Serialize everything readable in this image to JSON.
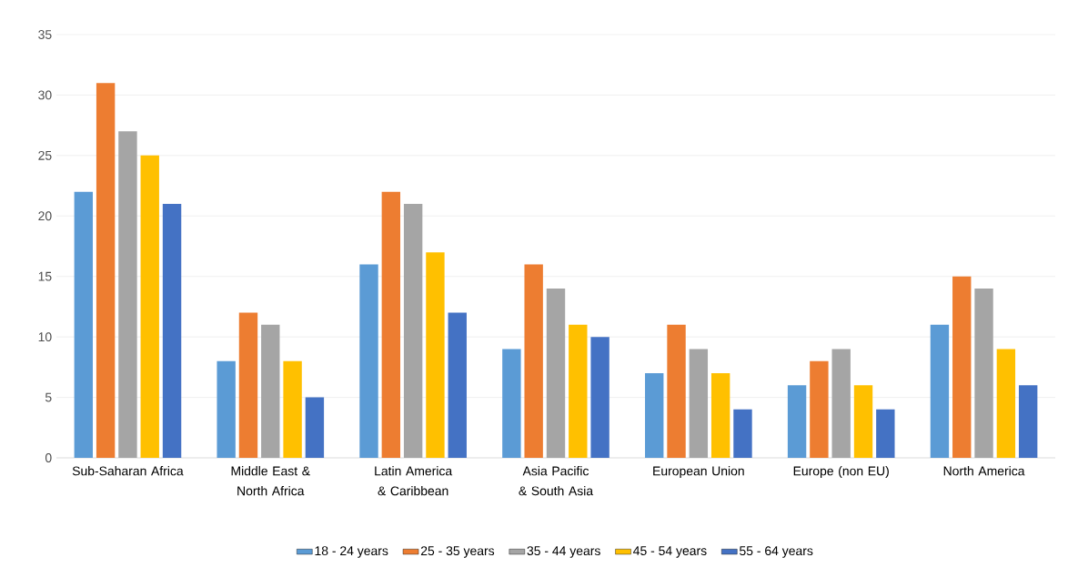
{
  "chart_data": {
    "type": "bar",
    "categories": [
      "Sub-Saharan Africa",
      "Middle East & North Africa",
      "Latin America & Caribbean",
      "Asia Pacific & South Asia",
      "European Union",
      "Europe (non EU)",
      "North America"
    ],
    "series": [
      {
        "name": "18 - 24 years",
        "color": "#5b9bd5",
        "values": [
          22,
          8,
          16,
          9,
          7,
          6,
          11
        ]
      },
      {
        "name": "25 - 35 years",
        "color": "#ed7d31",
        "values": [
          31,
          12,
          22,
          16,
          11,
          8,
          15
        ]
      },
      {
        "name": "35 - 44 years",
        "color": "#a5a5a5",
        "values": [
          27,
          11,
          21,
          14,
          9,
          9,
          14
        ]
      },
      {
        "name": "45 - 54 years",
        "color": "#ffc000",
        "values": [
          25,
          8,
          17,
          11,
          7,
          6,
          9
        ]
      },
      {
        "name": "55 - 64 years",
        "color": "#4472c4",
        "values": [
          21,
          5,
          12,
          10,
          4,
          4,
          6
        ]
      }
    ],
    "ylim": [
      0,
      35
    ],
    "yticks": [
      0,
      5,
      10,
      15,
      20,
      25,
      30,
      35
    ],
    "grid": "y",
    "legend": "bottom"
  }
}
